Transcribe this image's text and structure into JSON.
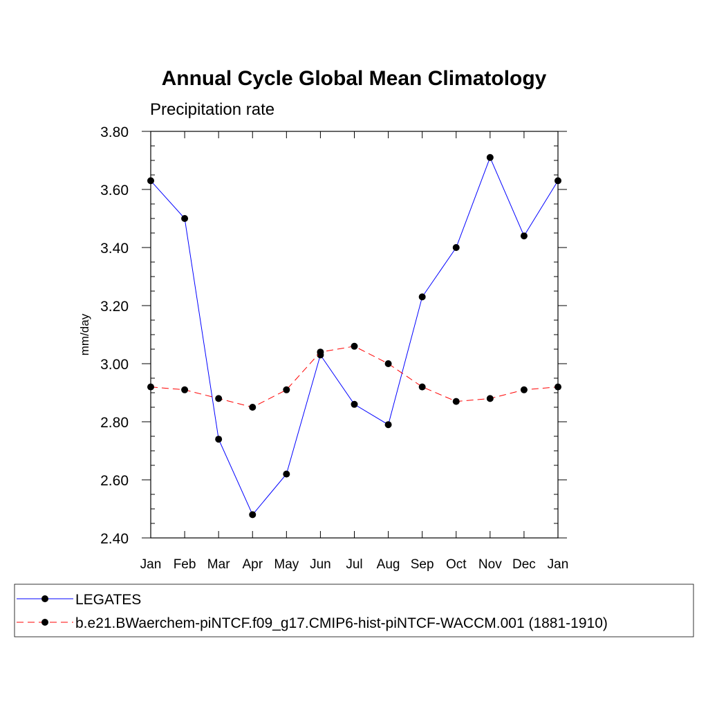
{
  "chart_data": {
    "type": "line",
    "title": "Annual Cycle Global Mean Climatology",
    "subtitle": "Precipitation rate",
    "xlabel": "",
    "ylabel": "mm/day",
    "ylim": [
      2.4,
      3.8
    ],
    "yticks": [
      "2.40",
      "2.60",
      "2.80",
      "3.00",
      "3.20",
      "3.40",
      "3.60",
      "3.80"
    ],
    "categories": [
      "Jan",
      "Feb",
      "Mar",
      "Apr",
      "May",
      "Jun",
      "Jul",
      "Aug",
      "Sep",
      "Oct",
      "Nov",
      "Dec",
      "Jan"
    ],
    "grid": false,
    "legend_position": "bottom",
    "series": [
      {
        "name": "LEGATES",
        "color": "#0000ff",
        "dash": "solid",
        "values": [
          3.63,
          3.5,
          2.74,
          2.48,
          2.62,
          3.03,
          2.86,
          2.79,
          3.23,
          3.4,
          3.71,
          3.44,
          3.63
        ]
      },
      {
        "name": "b.e21.BWaerchem-piNTCF.f09_g17.CMIP6-hist-piNTCF-WACCM.001 (1881-1910)",
        "color": "#ff0000",
        "dash": "dashed",
        "values": [
          2.92,
          2.91,
          2.88,
          2.85,
          2.91,
          3.04,
          3.06,
          3.0,
          2.92,
          2.87,
          2.88,
          2.91,
          2.92
        ]
      }
    ]
  }
}
